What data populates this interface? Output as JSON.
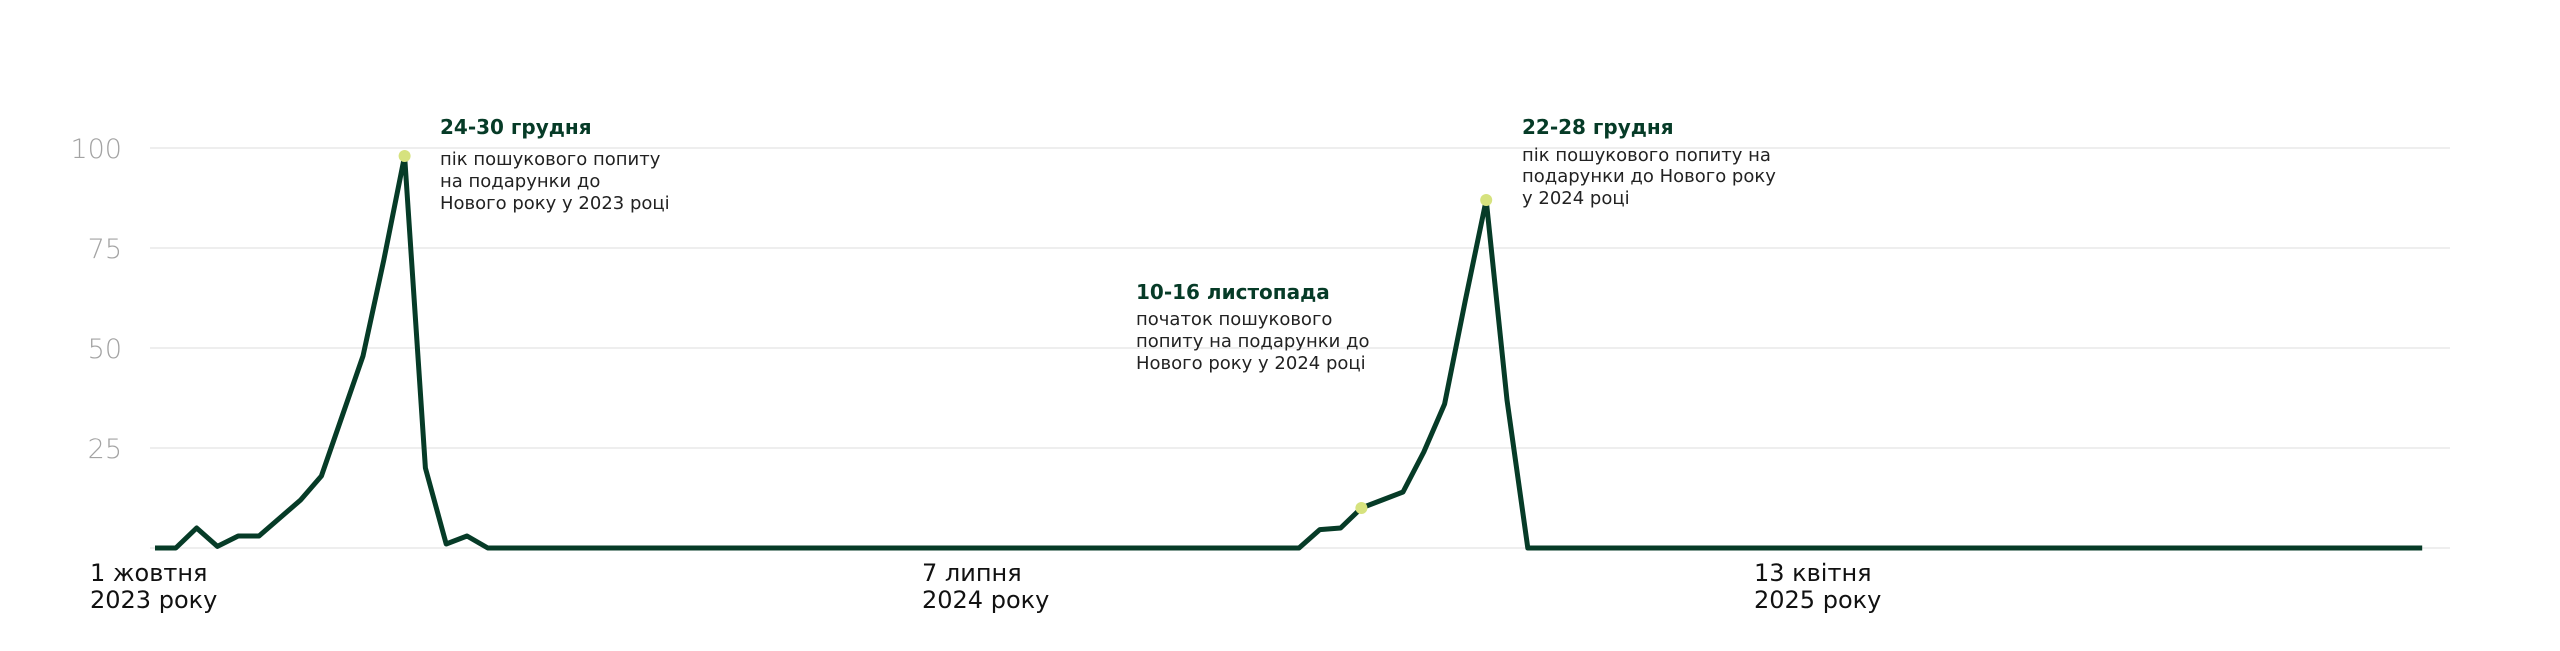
{
  "chart_data": {
    "type": "line",
    "title": "",
    "xlabel": "",
    "ylabel": "",
    "x_unit": "week",
    "x_start": "2023-10-01",
    "ylim": [
      0,
      100
    ],
    "yticks": [
      100,
      75,
      50,
      25
    ],
    "grid": true,
    "xticks": [
      {
        "week": 0,
        "line1": "1 жовтня",
        "line2": "2023 року"
      },
      {
        "week": 40,
        "line1": "7 липня",
        "line2": "2024 року"
      },
      {
        "week": 80,
        "line1": "13 квітня",
        "line2": "2025 року"
      }
    ],
    "values": [
      0,
      0,
      5,
      0.4,
      3,
      3,
      7.5,
      12,
      18,
      33,
      48,
      72,
      98,
      20,
      1,
      3,
      0,
      0,
      0,
      0,
      0,
      0,
      0,
      0,
      0,
      0,
      0,
      0,
      0,
      0,
      0,
      0,
      0,
      0,
      0,
      0,
      0,
      0,
      0,
      0,
      0,
      0,
      0,
      0,
      0,
      0,
      0,
      0,
      0,
      0,
      0,
      0,
      0,
      0,
      0,
      0,
      4.6,
      5,
      10,
      12,
      14,
      24,
      36,
      62,
      87,
      37,
      0,
      0,
      0,
      0,
      0,
      0,
      0,
      0,
      0,
      0,
      0,
      0,
      0,
      0,
      0,
      0,
      0,
      0,
      0,
      0,
      0,
      0,
      0,
      0,
      0,
      0,
      0,
      0,
      0,
      0,
      0,
      0,
      0,
      0,
      0,
      0,
      0,
      0,
      0,
      0,
      0,
      0,
      0,
      0
    ],
    "annotations": [
      {
        "week": 12,
        "title": "24-30 грудня",
        "lines": [
          "пік пошукового попиту",
          "на подарунки до",
          "Нового року у 2023 році"
        ]
      },
      {
        "week": 58,
        "title": "10-16 листопада",
        "lines": [
          "початок пошукового",
          "попиту на подарунки до",
          "Нового року у 2024 році"
        ]
      },
      {
        "week": 64,
        "title": "22-28 грудня",
        "lines": [
          "пік пошукового попиту на",
          "подарунки до Нового року",
          "у 2024 році"
        ]
      }
    ],
    "colors": {
      "line": "#063b27",
      "marker": "#d6e27e",
      "grid": "#e9e9e9"
    }
  }
}
